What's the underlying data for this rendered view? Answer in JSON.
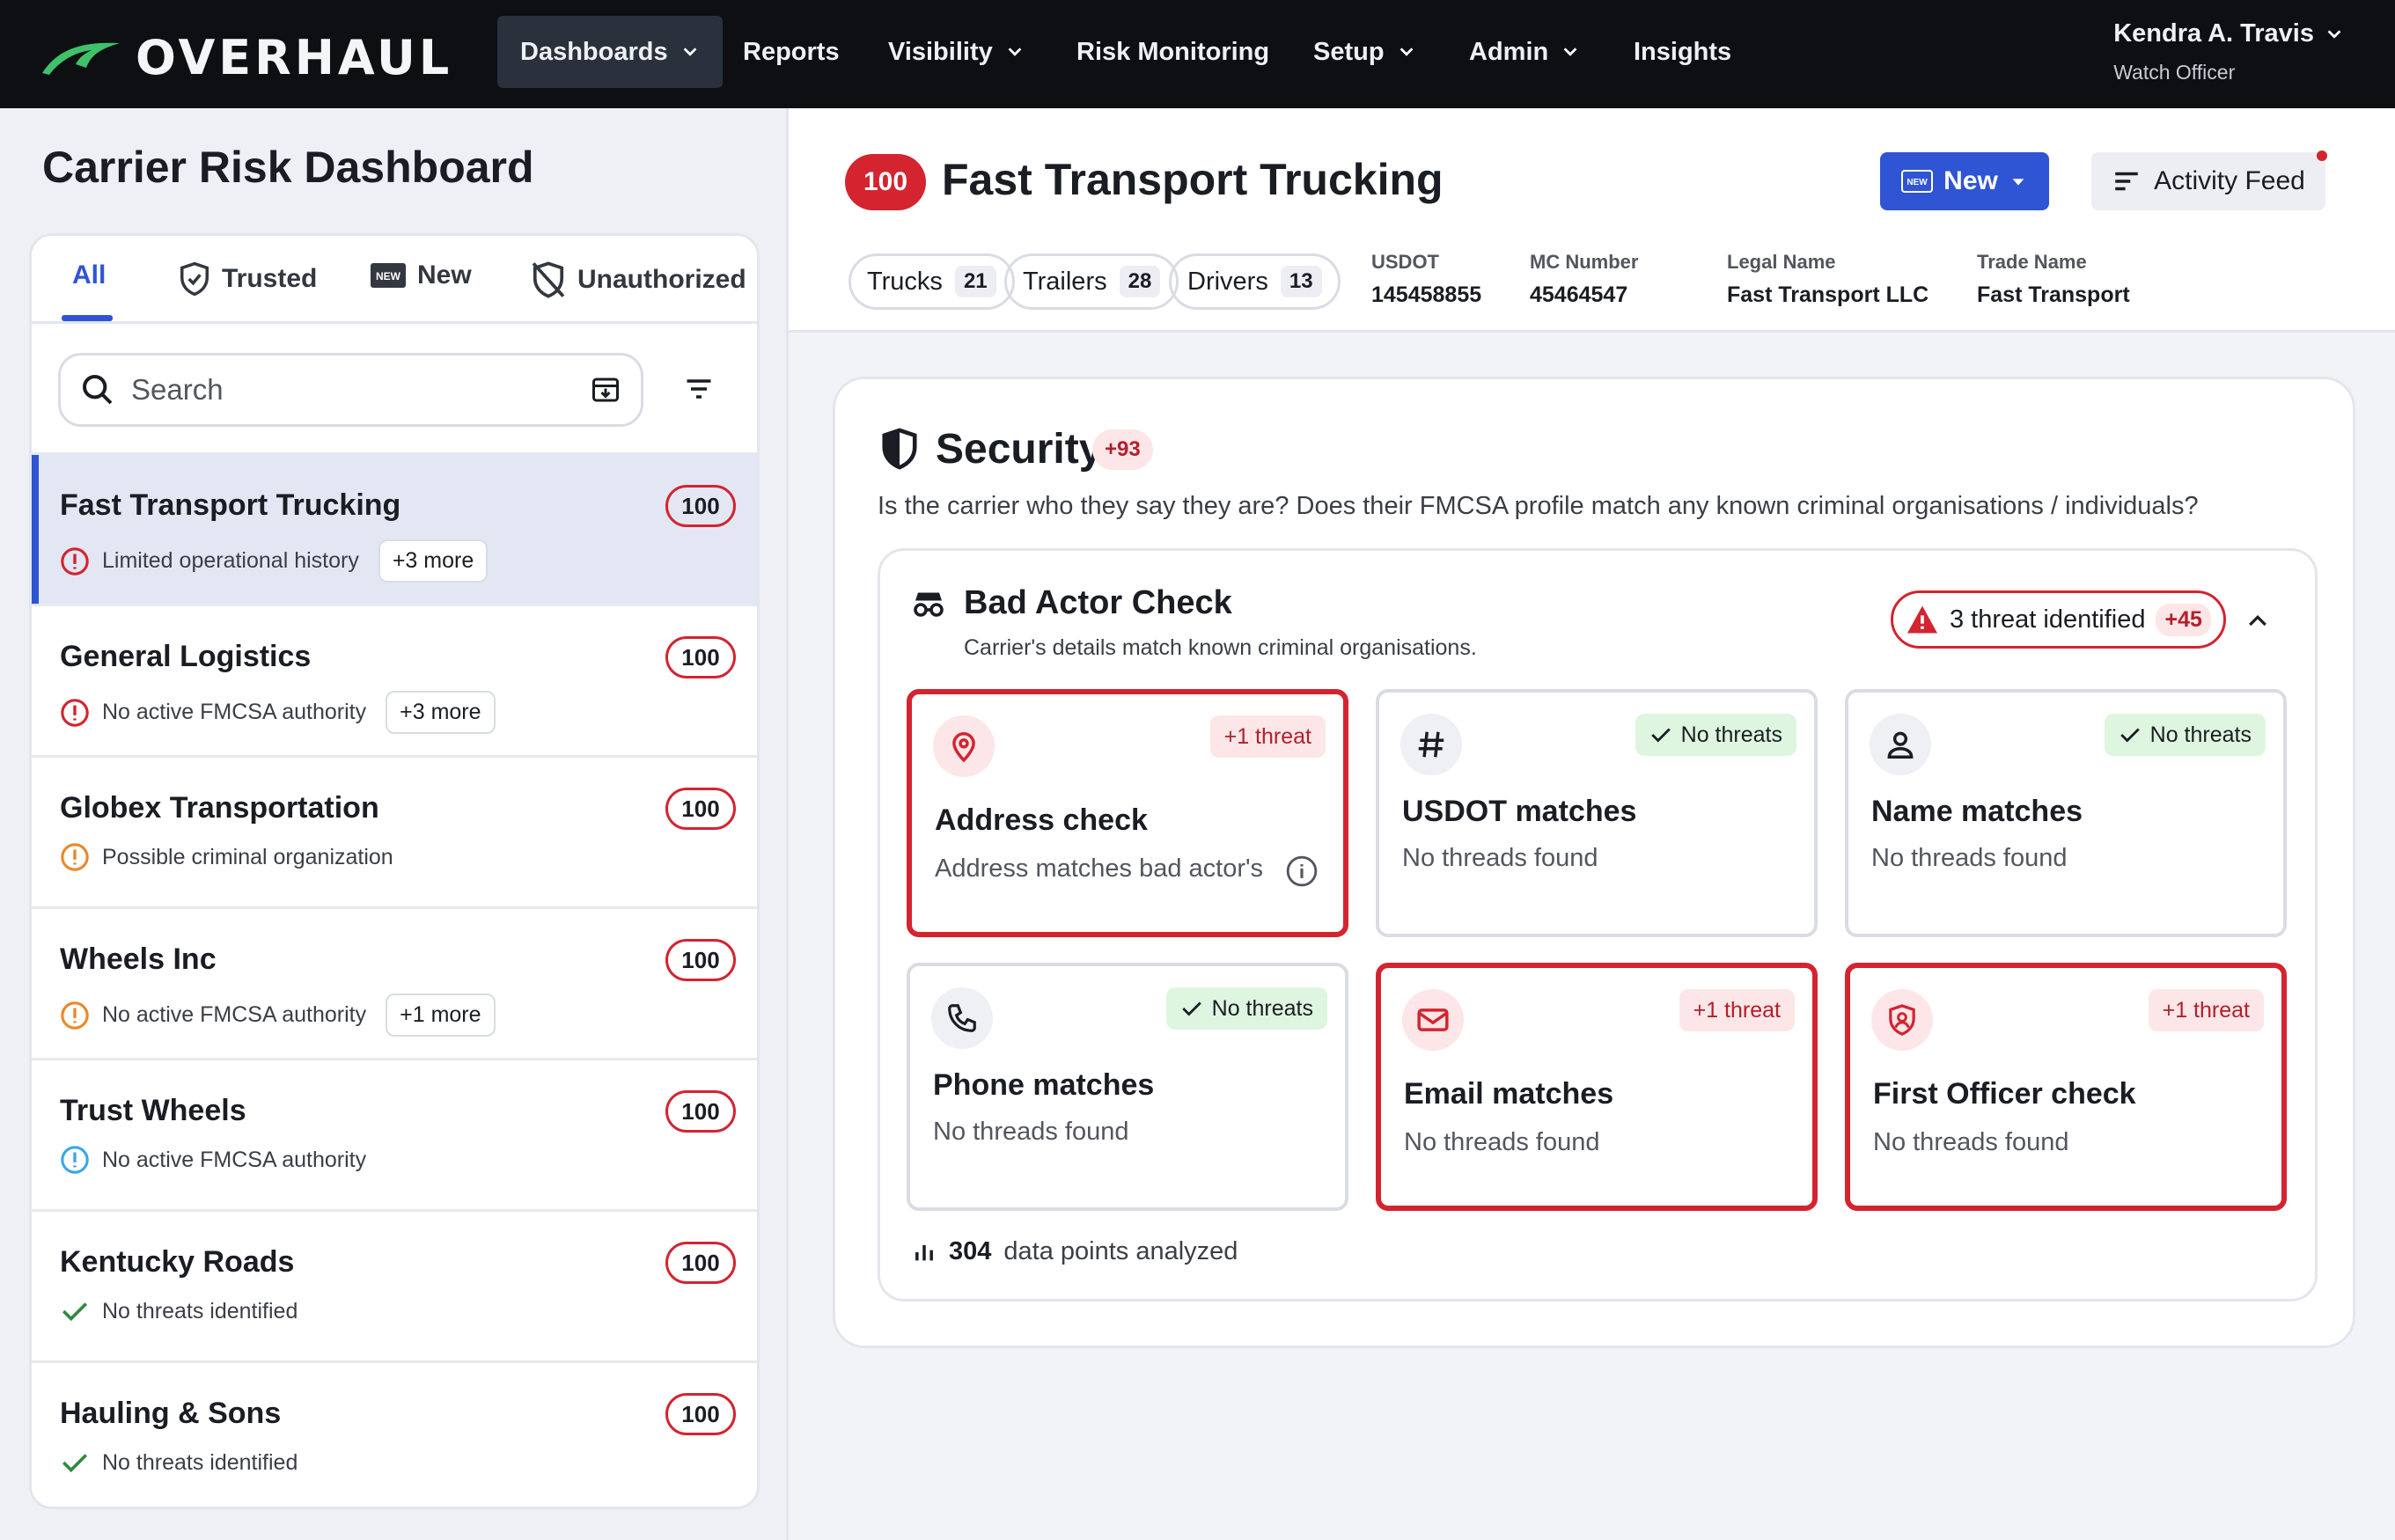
{
  "nav": {
    "logo": "OVERHAUL",
    "items": [
      {
        "label": "Dashboards",
        "dropdown": true,
        "active": true
      },
      {
        "label": "Reports",
        "dropdown": false
      },
      {
        "label": "Visibility",
        "dropdown": true
      },
      {
        "label": "Risk Monitoring",
        "dropdown": false
      },
      {
        "label": "Setup",
        "dropdown": true
      },
      {
        "label": "Admin",
        "dropdown": true
      },
      {
        "label": "Insights",
        "dropdown": false
      }
    ],
    "user": {
      "name": "Kendra A. Travis",
      "role": "Watch Officer"
    }
  },
  "sidebar": {
    "title": "Carrier Risk Dashboard",
    "tabs": [
      {
        "label": "All",
        "icon": "none"
      },
      {
        "label": "Trusted",
        "icon": "shield-check-icon"
      },
      {
        "label": "New",
        "icon": "new-badge-icon"
      },
      {
        "label": "Unauthorized",
        "icon": "shield-off-icon"
      }
    ],
    "search": {
      "placeholder": "Search"
    },
    "carriers": [
      {
        "name": "Fast Transport Trucking",
        "score": "100",
        "status": "Limited operational history",
        "status_level": "red",
        "more": "+3 more"
      },
      {
        "name": "General Logistics",
        "score": "100",
        "status": "No active FMCSA authority",
        "status_level": "red",
        "more": "+3 more"
      },
      {
        "name": "Globex Transportation",
        "score": "100",
        "status": "Possible criminal organization",
        "status_level": "orange",
        "more": ""
      },
      {
        "name": "Wheels Inc",
        "score": "100",
        "status": "No active FMCSA authority",
        "status_level": "orange",
        "more": "+1 more"
      },
      {
        "name": "Trust Wheels",
        "score": "100",
        "status": "No active FMCSA authority",
        "status_level": "blue",
        "more": ""
      },
      {
        "name": "Kentucky Roads",
        "score": "100",
        "status": "No threats identified",
        "status_level": "green",
        "more": ""
      },
      {
        "name": "Hauling & Sons",
        "score": "100",
        "status": "No threats identified",
        "status_level": "green",
        "more": ""
      }
    ]
  },
  "header": {
    "score": "100",
    "title": "Fast Transport Trucking",
    "new_button": "New",
    "new_badge": "NEW",
    "activity_button": "Activity Feed",
    "pills": [
      {
        "label": "Trucks",
        "count": "21"
      },
      {
        "label": "Trailers",
        "count": "28"
      },
      {
        "label": "Drivers",
        "count": "13"
      }
    ],
    "meta": [
      {
        "label": "USDOT",
        "value": "145458855"
      },
      {
        "label": "MC Number",
        "value": "45464547"
      },
      {
        "label": "Legal Name",
        "value": "Fast Transport LLC"
      },
      {
        "label": "Trade Name",
        "value": "Fast Transport"
      }
    ]
  },
  "security": {
    "title": "Security",
    "score": "+93",
    "description": "Is the carrier who they say they are? Does their FMCSA profile match any known criminal organisations / individuals?",
    "bad_actor": {
      "title": "Bad Actor Check",
      "subtitle": "Carrier's details match known criminal organisations.",
      "threat_label": "3 threat identified",
      "threat_score": "+45",
      "checks": [
        {
          "title": "Address check",
          "subtitle": "Address matches bad actor's",
          "tag": "+1 threat",
          "alert": true,
          "icon": "location-pin-icon"
        },
        {
          "title": "USDOT matches",
          "subtitle": "No threads found",
          "tag": "No threats",
          "alert": false,
          "icon": "hash-icon"
        },
        {
          "title": "Name matches",
          "subtitle": "No threads found",
          "tag": "No threats",
          "alert": false,
          "icon": "person-icon"
        },
        {
          "title": "Phone matches",
          "subtitle": "No threads found",
          "tag": "No threats",
          "alert": false,
          "icon": "phone-icon"
        },
        {
          "title": "Email matches",
          "subtitle": "No threads found",
          "tag": "+1 threat",
          "alert": true,
          "icon": "mail-icon"
        },
        {
          "title": "First Officer check",
          "subtitle": "No threads found",
          "tag": "+1 threat",
          "alert": true,
          "icon": "officer-shield-icon"
        }
      ],
      "data_points_count": "304",
      "data_points_label": "data points analyzed"
    }
  },
  "colors": {
    "accent": "#2f55d4",
    "danger": "#d32430",
    "success": "#2e8b3e",
    "warning": "#e8892b",
    "info": "#3ba7e6",
    "nav_bg": "#0d0f13"
  }
}
